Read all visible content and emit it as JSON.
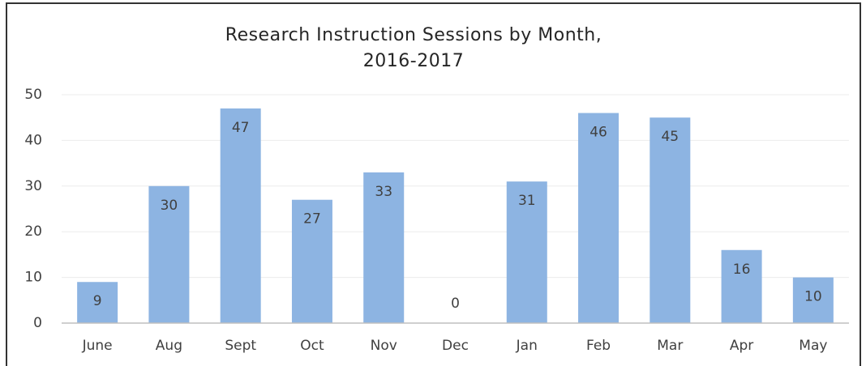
{
  "chart_data": {
    "type": "bar",
    "title": "Research Instruction Sessions by Month, 2016-2017",
    "categories": [
      "June",
      "Aug",
      "Sept",
      "Oct",
      "Nov",
      "Dec",
      "Jan",
      "Feb",
      "Mar",
      "Apr",
      "May"
    ],
    "values": [
      9,
      30,
      47,
      27,
      33,
      0,
      31,
      46,
      45,
      16,
      10
    ],
    "color": "#8db4e2",
    "ylim": [
      0,
      50
    ],
    "yticks": [
      0,
      10,
      20,
      30,
      40,
      50
    ],
    "grid": true
  }
}
